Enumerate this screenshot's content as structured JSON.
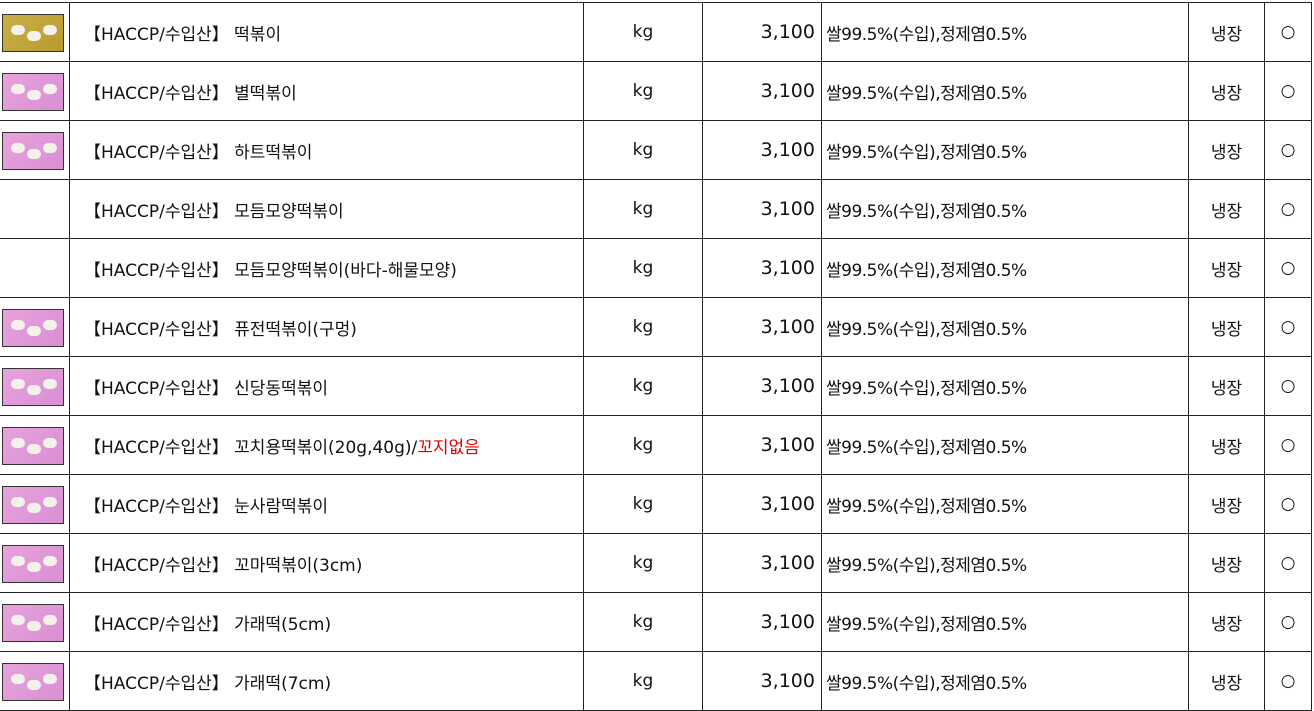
{
  "rows": [
    {
      "prefix": "【HACCP/수입산】",
      "name": "떡볶이",
      "suffix": "",
      "unit": "kg",
      "price": "3,100",
      "ingredients": "쌀99.5%(수입),정제염0.5%",
      "storage": "냉장",
      "mark": "○",
      "thumb": "gold"
    },
    {
      "prefix": "【HACCP/수입산】",
      "name": "별떡볶이",
      "suffix": "",
      "unit": "kg",
      "price": "3,100",
      "ingredients": "쌀99.5%(수입),정제염0.5%",
      "storage": "냉장",
      "mark": "○",
      "thumb": "pink"
    },
    {
      "prefix": "【HACCP/수입산】",
      "name": "하트떡볶이",
      "suffix": "",
      "unit": "kg",
      "price": "3,100",
      "ingredients": "쌀99.5%(수입),정제염0.5%",
      "storage": "냉장",
      "mark": "○",
      "thumb": "pink"
    },
    {
      "prefix": "【HACCP/수입산】",
      "name": "모듬모양떡볶이",
      "suffix": "",
      "unit": "kg",
      "price": "3,100",
      "ingredients": "쌀99.5%(수입),정제염0.5%",
      "storage": "냉장",
      "mark": "○",
      "thumb": ""
    },
    {
      "prefix": "【HACCP/수입산】",
      "name": "모듬모양떡볶이(바다-해물모양)",
      "suffix": "",
      "unit": "kg",
      "price": "3,100",
      "ingredients": "쌀99.5%(수입),정제염0.5%",
      "storage": "냉장",
      "mark": "○",
      "thumb": ""
    },
    {
      "prefix": "【HACCP/수입산】",
      "name": "퓨전떡볶이(구멍)",
      "suffix": "",
      "unit": "kg",
      "price": "3,100",
      "ingredients": "쌀99.5%(수입),정제염0.5%",
      "storage": "냉장",
      "mark": "○",
      "thumb": "pink"
    },
    {
      "prefix": "【HACCP/수입산】",
      "name": "신당동떡볶이",
      "suffix": "",
      "unit": "kg",
      "price": "3,100",
      "ingredients": "쌀99.5%(수입),정제염0.5%",
      "storage": "냉장",
      "mark": "○",
      "thumb": "pink"
    },
    {
      "prefix": "【HACCP/수입산】",
      "name": "꼬치용떡볶이(20g,40g)/",
      "suffix": "꼬지없음",
      "unit": "kg",
      "price": "3,100",
      "ingredients": "쌀99.5%(수입),정제염0.5%",
      "storage": "냉장",
      "mark": "○",
      "thumb": "pink"
    },
    {
      "prefix": "【HACCP/수입산】",
      "name": "눈사람떡볶이",
      "suffix": "",
      "unit": "kg",
      "price": "3,100",
      "ingredients": "쌀99.5%(수입),정제염0.5%",
      "storage": "냉장",
      "mark": "○",
      "thumb": "pink"
    },
    {
      "prefix": "【HACCP/수입산】",
      "name": "꼬마떡볶이(3cm)",
      "suffix": "",
      "unit": "kg",
      "price": "3,100",
      "ingredients": "쌀99.5%(수입),정제염0.5%",
      "storage": "냉장",
      "mark": "○",
      "thumb": "pink"
    },
    {
      "prefix": "【HACCP/수입산】",
      "name": "가래떡(5cm)",
      "suffix": "",
      "unit": "kg",
      "price": "3,100",
      "ingredients": "쌀99.5%(수입),정제염0.5%",
      "storage": "냉장",
      "mark": "○",
      "thumb": "pink"
    },
    {
      "prefix": "【HACCP/수입산】",
      "name": "가래떡(7cm)",
      "suffix": "",
      "unit": "kg",
      "price": "3,100",
      "ingredients": "쌀99.5%(수입),정제염0.5%",
      "storage": "냉장",
      "mark": "○",
      "thumb": "pink"
    }
  ],
  "colors": {
    "highlight": "#e00000",
    "grid": "#222222"
  }
}
